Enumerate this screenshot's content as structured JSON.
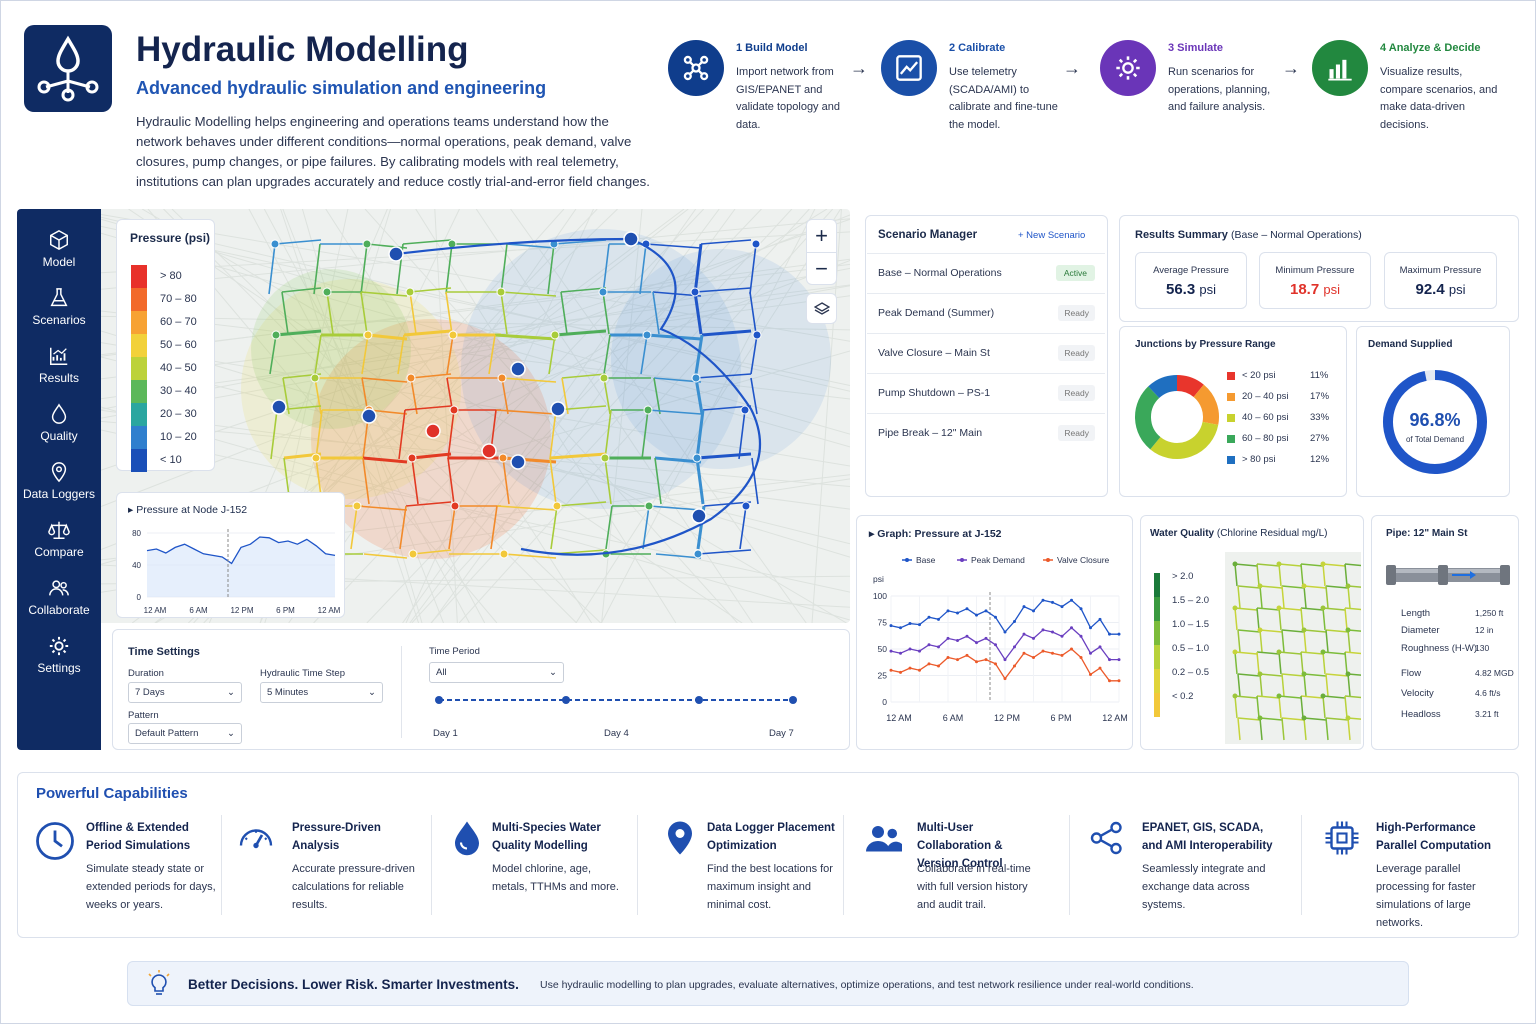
{
  "header": {
    "title": "Hydraulic Modelling",
    "subtitle": "Advanced hydraulic simulation and engineering",
    "description": "Hydraulic Modelling helps engineering and operations teams understand how the network behaves under different conditions—normal operations, peak demand, valve closures, pump changes, or pipe failures. By calibrating models with real telemetry, institutions can plan upgrades accurately and reduce costly trial-and-error field changes."
  },
  "steps": [
    {
      "num": "1",
      "title": "Build Model",
      "desc": "Import network from GIS/EPANET and validate topology and data.",
      "color": "#0f3d8c",
      "icon": "network-icon"
    },
    {
      "num": "2",
      "title": "Calibrate",
      "desc": "Use telemetry (SCADA/AMI) to calibrate and fine-tune the model.",
      "color": "#1a4fa8",
      "icon": "trend-chart-icon"
    },
    {
      "num": "3",
      "title": "Simulate",
      "desc": "Run scenarios for operations, planning, and failure analysis.",
      "color": "#6a35b8",
      "icon": "gear-icon"
    },
    {
      "num": "4",
      "title": "Analyze & Decide",
      "desc": "Visualize results, compare scenarios, and make data-driven decisions.",
      "color": "#22883f",
      "icon": "bar-chart-icon"
    }
  ],
  "sidebar": {
    "items": [
      {
        "label": "Model",
        "icon": "cube-icon"
      },
      {
        "label": "Scenarios",
        "icon": "flask-icon"
      },
      {
        "label": "Results",
        "icon": "chart-icon"
      },
      {
        "label": "Quality",
        "icon": "drop-icon"
      },
      {
        "label": "Data Loggers",
        "icon": "pin-icon"
      },
      {
        "label": "Compare",
        "icon": "scale-icon"
      },
      {
        "label": "Collaborate",
        "icon": "users-icon"
      },
      {
        "label": "Settings",
        "icon": "gear-icon"
      }
    ]
  },
  "legend": {
    "title": "Pressure (psi)",
    "items": [
      {
        "label": "> 80",
        "color": "#e8312a"
      },
      {
        "label": "70 – 80",
        "color": "#f26a2a"
      },
      {
        "label": "60 – 70",
        "color": "#f7a233"
      },
      {
        "label": "50 – 60",
        "color": "#f2d13a"
      },
      {
        "label": "40 – 50",
        "color": "#bcd23a"
      },
      {
        "label": "30 – 40",
        "color": "#5bb85a"
      },
      {
        "label": "20 – 30",
        "color": "#2aa6a0"
      },
      {
        "label": "10 – 20",
        "color": "#2f7fce"
      },
      {
        "label": "< 10",
        "color": "#1a4fb8"
      }
    ]
  },
  "node_chart": {
    "title": "Pressure at Node J-152",
    "y_ticks": [
      "80",
      "40",
      "0"
    ],
    "x_ticks": [
      "12 AM",
      "6 AM",
      "12 PM",
      "6 PM",
      "12 AM"
    ]
  },
  "time_settings": {
    "title": "Time Settings",
    "duration_label": "Duration",
    "duration_value": "7 Days",
    "step_label": "Hydraulic Time Step",
    "step_value": "5 Minutes",
    "pattern_label": "Pattern",
    "pattern_value": "Default Pattern",
    "period_label": "Time Period",
    "period_value": "All",
    "timeline_ticks": [
      "Day 1",
      "Day 4",
      "Day 7"
    ]
  },
  "scenario_manager": {
    "title": "Scenario Manager",
    "new_label": "+ New Scenario",
    "scenarios": [
      {
        "name": "Base – Normal Operations",
        "status": "Active"
      },
      {
        "name": "Peak Demand (Summer)",
        "status": "Ready"
      },
      {
        "name": "Valve Closure – Main St",
        "status": "Ready"
      },
      {
        "name": "Pump Shutdown – PS-1",
        "status": "Ready"
      },
      {
        "name": "Pipe Break – 12\" Main",
        "status": "Ready"
      }
    ]
  },
  "results_summary": {
    "title": "Results Summary",
    "scenario": "(Base – Normal Operations)",
    "avg_label": "Average Pressure",
    "avg_value": "56.3",
    "avg_unit": "psi",
    "min_label": "Minimum Pressure",
    "min_value": "18.7",
    "min_unit": "psi",
    "max_label": "Maximum Pressure",
    "max_value": "92.4",
    "max_unit": "psi"
  },
  "junctions": {
    "title": "Junctions by Pressure Range",
    "items": [
      {
        "label": "< 20 psi",
        "value": "11%",
        "pct": 11,
        "color": "#e8352c"
      },
      {
        "label": "20 – 40 psi",
        "value": "17%",
        "pct": 17,
        "color": "#f59a30"
      },
      {
        "label": "40 – 60 psi",
        "value": "33%",
        "pct": 33,
        "color": "#c8d22e"
      },
      {
        "label": "60 – 80 psi",
        "value": "27%",
        "pct": 27,
        "color": "#3aa85a"
      },
      {
        "label": "> 80 psi",
        "value": "12%",
        "pct": 12,
        "color": "#1f6fc0"
      }
    ]
  },
  "demand": {
    "title": "Demand Supplied",
    "value": "96.8%",
    "caption": "of Total Demand",
    "pct": 96.8
  },
  "graph": {
    "title": "Graph: Pressure at J-152",
    "ylabel": "psi",
    "y_ticks": [
      "100",
      "75",
      "50",
      "25",
      "0"
    ],
    "x_ticks": [
      "12 AM",
      "6 AM",
      "12 PM",
      "6 PM",
      "12 AM"
    ],
    "legend": [
      {
        "name": "Base",
        "color": "#1f55c8"
      },
      {
        "name": "Peak Demand",
        "color": "#6a3fc0"
      },
      {
        "name": "Valve Closure",
        "color": "#ec5a2a"
      }
    ]
  },
  "chart_data": {
    "type": "line",
    "title": "Graph: Pressure at J-152",
    "ylabel": "psi",
    "ylim": [
      0,
      100
    ],
    "x": [
      "12 AM",
      "1",
      "2",
      "3",
      "4",
      "5",
      "6 AM",
      "7",
      "8",
      "9",
      "10",
      "11",
      "12 PM",
      "13",
      "14",
      "15",
      "16",
      "17",
      "18",
      "19",
      "20",
      "21",
      "22",
      "23",
      "12 AM"
    ],
    "series": [
      {
        "name": "Base",
        "values": [
          72,
          70,
          74,
          73,
          80,
          78,
          86,
          84,
          88,
          82,
          86,
          80,
          66,
          76,
          90,
          86,
          96,
          94,
          90,
          96,
          88,
          70,
          78,
          64,
          64
        ]
      },
      {
        "name": "Peak Demand",
        "values": [
          48,
          46,
          50,
          48,
          54,
          52,
          60,
          58,
          62,
          56,
          60,
          54,
          40,
          52,
          64,
          60,
          68,
          66,
          62,
          70,
          62,
          46,
          52,
          40,
          40
        ]
      },
      {
        "name": "Valve Closure",
        "values": [
          30,
          28,
          32,
          30,
          36,
          34,
          42,
          40,
          44,
          38,
          40,
          36,
          22,
          34,
          46,
          42,
          48,
          46,
          44,
          50,
          42,
          26,
          32,
          20,
          20
        ]
      }
    ],
    "grid": true,
    "legend_position": "top"
  },
  "water_quality": {
    "title": "Water Quality",
    "unit": "(Chlorine Residual mg/L)",
    "items": [
      {
        "label": "> 2.0",
        "color": "#1a7a3a"
      },
      {
        "label": "1.5 – 2.0",
        "color": "#3a9a3f"
      },
      {
        "label": "1.0 – 1.5",
        "color": "#7cbc3a"
      },
      {
        "label": "0.5 – 1.0",
        "color": "#b8d23a"
      },
      {
        "label": "0.2 – 0.5",
        "color": "#e0d43a"
      },
      {
        "label": "< 0.2",
        "color": "#f2c83a"
      }
    ]
  },
  "pipe": {
    "title": "Pipe: 12\" Main St",
    "rows": [
      {
        "label": "Length",
        "value": "1,250 ft"
      },
      {
        "label": "Diameter",
        "value": "12 in"
      },
      {
        "label": "Roughness (H-W)",
        "value": "130"
      },
      {
        "label": "Flow",
        "value": "4.82 MGD"
      },
      {
        "label": "Velocity",
        "value": "4.6 ft/s"
      },
      {
        "label": "Headloss",
        "value": "3.21 ft"
      }
    ]
  },
  "capabilities": {
    "title": "Powerful Capabilities",
    "items": [
      {
        "title": "Offline & Extended Period Simulations",
        "desc": "Simulate steady state or extended periods for days, weeks or years.",
        "icon": "clock-icon"
      },
      {
        "title": "Pressure-Driven Analysis",
        "desc": "Accurate pressure-driven calculations for reliable results.",
        "icon": "gauge-icon"
      },
      {
        "title": "Multi-Species Water Quality Modelling",
        "desc": "Model chlorine, age, metals, TTHMs and more.",
        "icon": "water-drop-icon"
      },
      {
        "title": "Data Logger Placement Optimization",
        "desc": "Find the best locations for maximum insight and minimal cost.",
        "icon": "location-pin-icon"
      },
      {
        "title": "Multi-User Collaboration & Version Control",
        "desc": "Collaborate in real-time with full version history and audit trail.",
        "icon": "users-icon"
      },
      {
        "title": "EPANET, GIS, SCADA, and AMI Interoperability",
        "desc": "Seamlessly integrate and exchange data across systems.",
        "icon": "share-nodes-icon"
      },
      {
        "title": "High-Performance Parallel Computation",
        "desc": "Leverage parallel processing for faster simulations of large networks.",
        "icon": "chip-icon"
      }
    ]
  },
  "footer": {
    "headline": "Better Decisions. Lower Risk. Smarter Investments.",
    "text": "Use hydraulic modelling to plan upgrades, evaluate alternatives, optimize operations, and test network resilience under real-world conditions."
  }
}
